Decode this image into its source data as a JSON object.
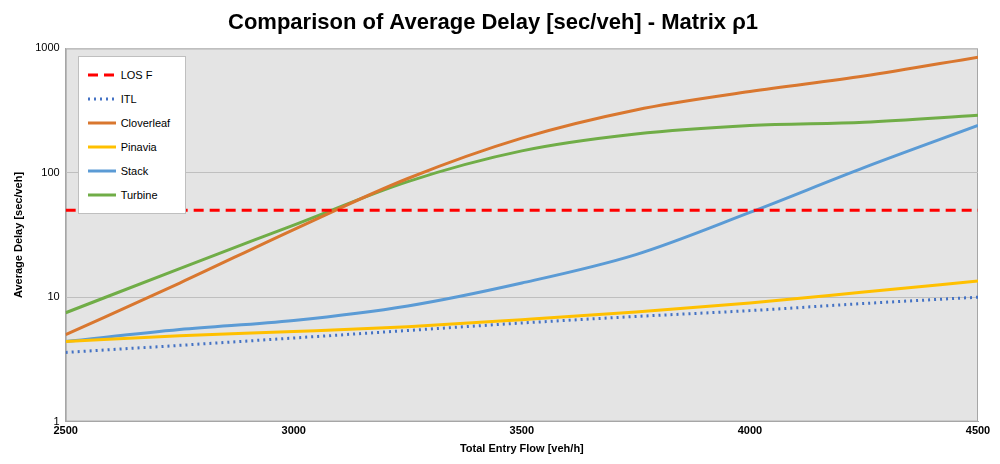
{
  "chart_data": {
    "type": "line",
    "title": "Comparison of Average Delay [sec/veh] - Matrix ρ1",
    "x_label": "Total Entry Flow [veh/h]",
    "y_label": "Average Delay [sec/veh]",
    "x": [
      2500,
      2750,
      3000,
      3250,
      3500,
      3750,
      4000,
      4250,
      4500
    ],
    "series": [
      {
        "name": "LOS F",
        "color": "#ff0000",
        "line_style": "dashed",
        "values": [
          50,
          50,
          50,
          50,
          50,
          50,
          50,
          50,
          50
        ]
      },
      {
        "name": "ITL",
        "color": "#4472c4",
        "line_style": "dotted",
        "values": [
          3.6,
          4.1,
          4.7,
          5.4,
          6.2,
          7.0,
          7.8,
          8.9,
          10
        ]
      },
      {
        "name": "Cloverleaf",
        "color": "#d9772f",
        "line_style": "solid",
        "values": [
          5,
          13,
          35,
          90,
          190,
          320,
          450,
          600,
          850
        ]
      },
      {
        "name": "Pinavia",
        "color": "#ffc000",
        "line_style": "solid",
        "values": [
          4.4,
          4.9,
          5.3,
          5.8,
          6.6,
          7.6,
          9.0,
          11,
          13.5
        ]
      },
      {
        "name": "Stack",
        "color": "#5b9bd5",
        "line_style": "solid",
        "values": [
          4.4,
          5.5,
          6.5,
          8.5,
          13,
          22,
          48,
          110,
          240
        ]
      },
      {
        "name": "Turbine",
        "color": "#70ad47",
        "line_style": "solid",
        "values": [
          7.5,
          17,
          38,
          85,
          150,
          205,
          240,
          255,
          290
        ]
      }
    ],
    "xlim": [
      2500,
      4500
    ],
    "xticks": [
      2500,
      3000,
      3500,
      4000,
      4500
    ],
    "ylim": [
      1,
      1000
    ],
    "yticks": [
      1,
      10,
      100,
      1000
    ],
    "log": "y",
    "grid": true,
    "legend": "top-left"
  }
}
